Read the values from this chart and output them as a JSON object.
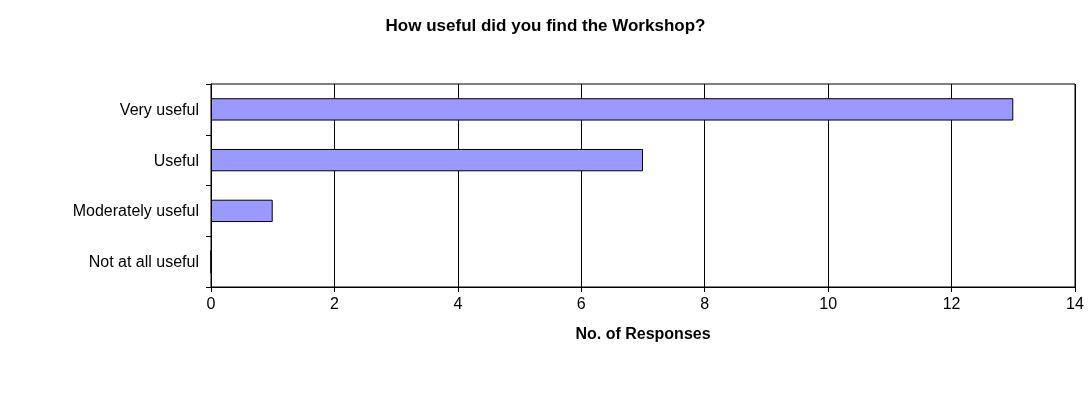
{
  "chart_data": {
    "type": "bar",
    "orientation": "horizontal",
    "title": "How useful did you find the Workshop?",
    "xlabel": "No. of Responses",
    "categories": [
      "Very useful",
      "Useful",
      "Moderately useful",
      "Not at all useful"
    ],
    "values": [
      13,
      7,
      1,
      0
    ],
    "color": "#9999ff",
    "xlim": [
      0,
      14
    ],
    "xticks": [
      0,
      2,
      4,
      6,
      8,
      10,
      12,
      14
    ],
    "grid": "x"
  }
}
